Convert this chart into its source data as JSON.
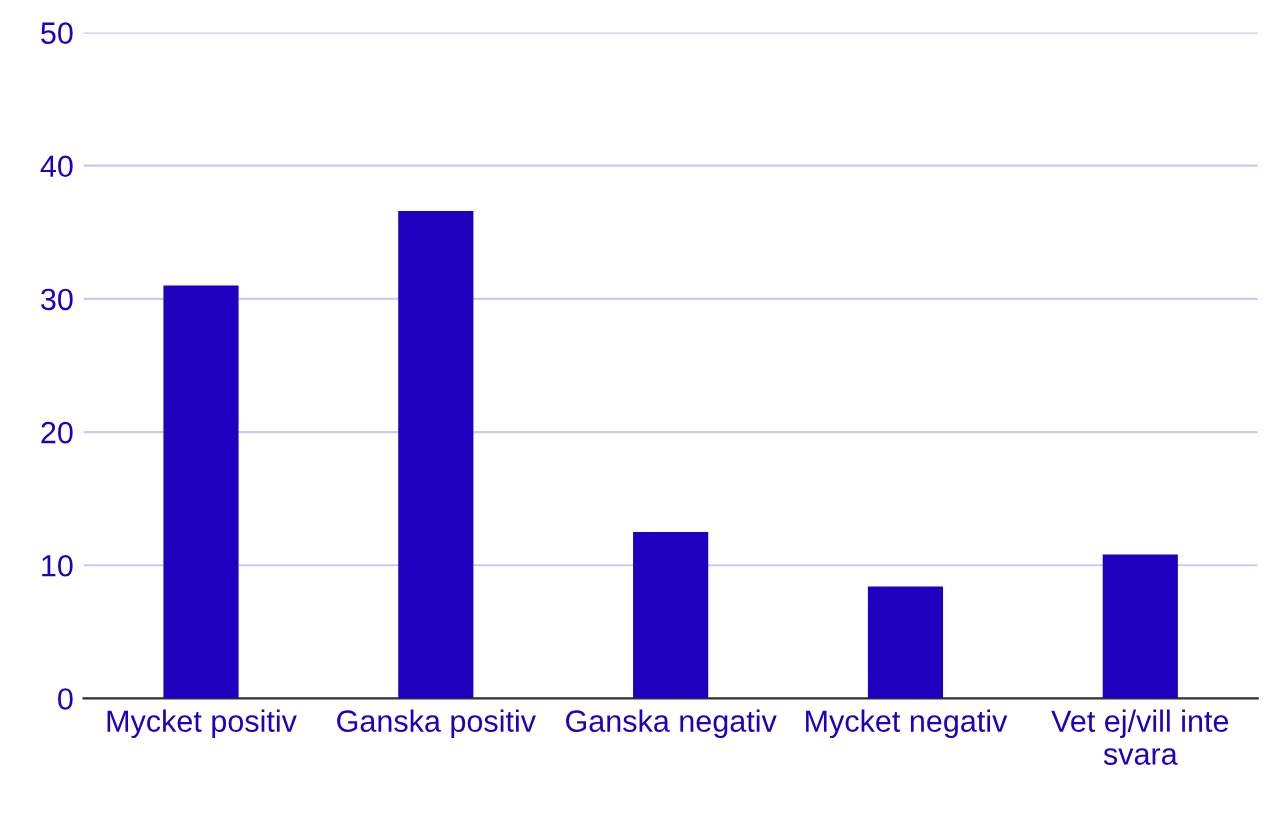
{
  "chart_data": {
    "type": "bar",
    "categories": [
      "Mycket positiv",
      "Ganska positiv",
      "Ganska negativ",
      "Mycket negativ",
      "Vet ej/vill inte\nsvara"
    ],
    "values": [
      31,
      36.6,
      12.5,
      8.4,
      10.8
    ],
    "color": "#1f00bf",
    "ylim": [
      0,
      50
    ],
    "yticks": [
      0,
      10,
      20,
      30,
      40,
      50
    ],
    "grid": "y"
  }
}
